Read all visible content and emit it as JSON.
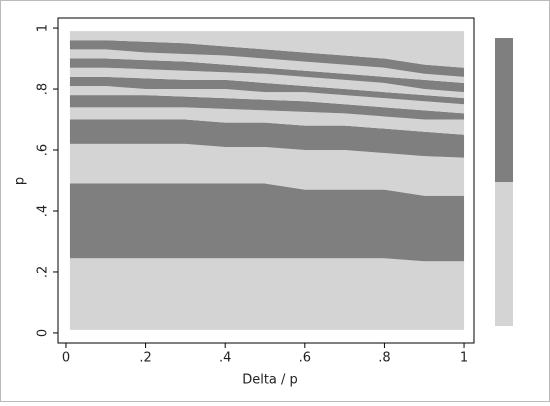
{
  "chart_data": {
    "type": "contour",
    "xlabel": "Delta / p",
    "ylabel": "p",
    "xlim": [
      -0.02,
      1.025
    ],
    "ylim": [
      -0.033,
      1.033
    ],
    "xticks": [
      0,
      {
        "value": 0.2,
        "label": ".2"
      },
      {
        "value": 0.4,
        "label": ".4"
      },
      {
        "value": 0.6,
        "label": ".6"
      },
      {
        "value": 0.8,
        "label": ".8"
      },
      1
    ],
    "yticks": [
      0,
      {
        "value": 0.2,
        "label": ".2"
      },
      {
        "value": 0.4,
        "label": ".4"
      },
      {
        "value": 0.6,
        "label": ".6"
      },
      {
        "value": 0.8,
        "label": ".8"
      },
      1
    ],
    "x": [
      0.01,
      0.1,
      0.2,
      0.3,
      0.4,
      0.5,
      0.6,
      0.7,
      0.8,
      0.9,
      1
    ],
    "floor": 0.01,
    "ceiling": 0.99,
    "boundaries": [
      [
        0.245,
        0.245,
        0.245,
        0.245,
        0.245,
        0.245,
        0.245,
        0.245,
        0.245,
        0.235,
        0.235
      ],
      [
        0.49,
        0.49,
        0.49,
        0.49,
        0.49,
        0.49,
        0.47,
        0.47,
        0.47,
        0.45,
        0.45
      ],
      [
        0.62,
        0.62,
        0.62,
        0.62,
        0.61,
        0.61,
        0.6,
        0.6,
        0.59,
        0.58,
        0.575
      ],
      [
        0.7,
        0.7,
        0.7,
        0.7,
        0.69,
        0.69,
        0.68,
        0.68,
        0.67,
        0.66,
        0.65
      ],
      [
        0.74,
        0.74,
        0.74,
        0.74,
        0.735,
        0.73,
        0.725,
        0.72,
        0.71,
        0.7,
        0.7
      ],
      [
        0.78,
        0.78,
        0.78,
        0.775,
        0.77,
        0.765,
        0.76,
        0.75,
        0.74,
        0.73,
        0.72
      ],
      [
        0.81,
        0.81,
        0.8,
        0.8,
        0.8,
        0.79,
        0.79,
        0.78,
        0.77,
        0.76,
        0.75
      ],
      [
        0.84,
        0.84,
        0.835,
        0.83,
        0.83,
        0.82,
        0.81,
        0.8,
        0.79,
        0.78,
        0.77
      ],
      [
        0.87,
        0.87,
        0.865,
        0.86,
        0.855,
        0.85,
        0.84,
        0.83,
        0.82,
        0.8,
        0.79
      ],
      [
        0.9,
        0.9,
        0.895,
        0.89,
        0.88,
        0.87,
        0.86,
        0.85,
        0.84,
        0.83,
        0.82
      ],
      [
        0.93,
        0.93,
        0.92,
        0.915,
        0.91,
        0.9,
        0.89,
        0.88,
        0.87,
        0.85,
        0.84
      ],
      [
        0.96,
        0.96,
        0.955,
        0.95,
        0.94,
        0.93,
        0.92,
        0.91,
        0.9,
        0.88,
        0.87
      ]
    ],
    "colors": [
      "#d4d4d4",
      "#7f7f7f"
    ],
    "legend": "right"
  }
}
